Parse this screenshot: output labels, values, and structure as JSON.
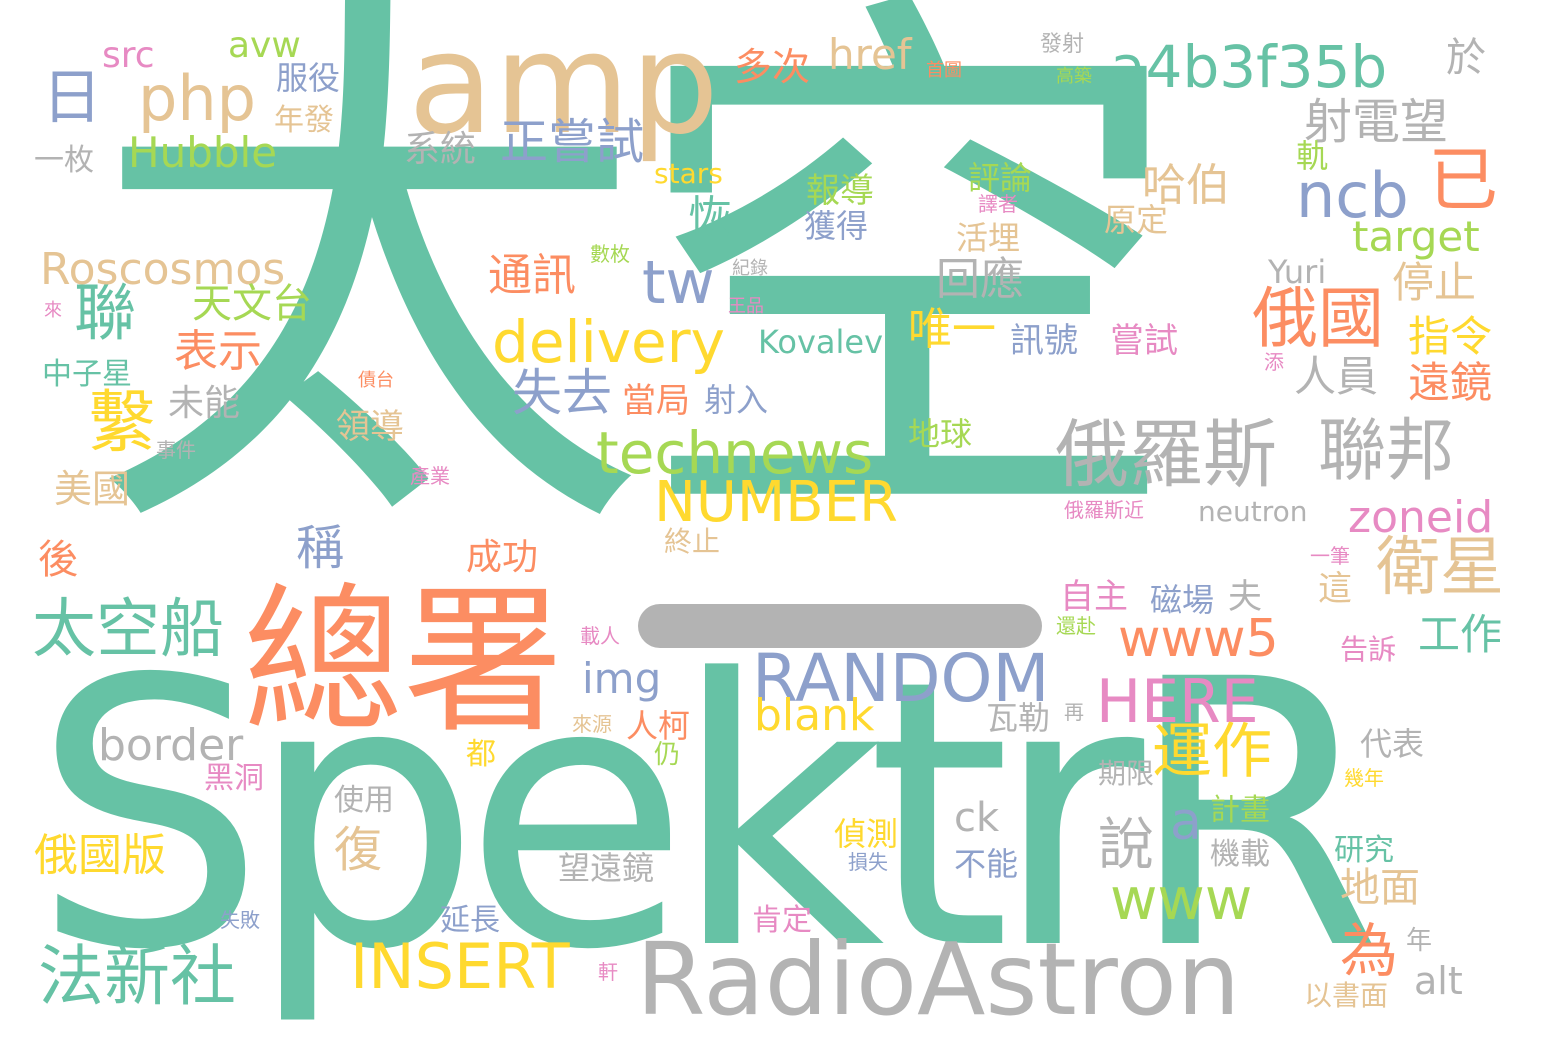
{
  "palette": {
    "c1": "#66c2a5",
    "c2": "#fc8d62",
    "c3": "#8da0cb",
    "c4": "#e78ac3",
    "c5": "#a6d854",
    "c6": "#ffd92f",
    "c7": "#e5c494",
    "c8": "#b3b3b3"
  },
  "words": [
    {
      "id": 1,
      "text": "太空"
    },
    {
      "id": 2,
      "text": "SpektrR"
    },
    {
      "id": 3,
      "text": "總署"
    },
    {
      "id": 4,
      "text": "amp"
    },
    {
      "id": 5,
      "text": "RadioAstron"
    },
    {
      "id": 6,
      "text": "俄羅斯"
    },
    {
      "id": 7,
      "text": "聯邦"
    },
    {
      "id": 8,
      "text": "a4b3f35b"
    },
    {
      "id": 9,
      "text": "technews"
    },
    {
      "id": 10,
      "text": "delivery"
    },
    {
      "id": 11,
      "text": "RANDOM"
    },
    {
      "id": 12,
      "text": "NUMBER"
    },
    {
      "id": 13,
      "text": "INSERT"
    },
    {
      "id": 14,
      "text": "HERE"
    },
    {
      "id": 15,
      "text": "www5"
    },
    {
      "id": 16,
      "text": "php"
    },
    {
      "id": 17,
      "text": "日"
    },
    {
      "id": 18,
      "text": "衛星"
    },
    {
      "id": 19,
      "text": "俄國"
    },
    {
      "id": 20,
      "text": "ncb"
    },
    {
      "id": 21,
      "text": "tw"
    },
    {
      "id": 22,
      "text": "www"
    },
    {
      "id": 23,
      "text": "已"
    },
    {
      "id": 24,
      "text": "太空船"
    },
    {
      "id": 25,
      "text": "法新社"
    },
    {
      "id": 26,
      "text": "聯"
    },
    {
      "id": 27,
      "text": "繫"
    },
    {
      "id": 28,
      "text": "運作"
    },
    {
      "id": 29,
      "text": "正嘗試"
    },
    {
      "id": 30,
      "text": "失去"
    },
    {
      "id": 31,
      "text": "href"
    },
    {
      "id": 32,
      "text": "Hubble"
    },
    {
      "id": 33,
      "text": "Roscosmos"
    },
    {
      "id": 34,
      "text": "target"
    },
    {
      "id": 35,
      "text": "zoneid"
    },
    {
      "id": 36,
      "text": "blank"
    },
    {
      "id": 37,
      "text": "img"
    },
    {
      "id": 38,
      "text": "border"
    },
    {
      "id": 39,
      "text": "俄國版"
    },
    {
      "id": 40,
      "text": "通訊"
    },
    {
      "id": 41,
      "text": "表示"
    },
    {
      "id": 42,
      "text": "天文台"
    },
    {
      "id": 43,
      "text": "為"
    },
    {
      "id": 44,
      "text": "說"
    },
    {
      "id": 45,
      "text": "a"
    },
    {
      "id": 46,
      "text": "回應"
    },
    {
      "id": 47,
      "text": "唯一"
    },
    {
      "id": 48,
      "text": "射電望"
    },
    {
      "id": 49,
      "text": "停止"
    },
    {
      "id": 50,
      "text": "指令"
    },
    {
      "id": 51,
      "text": "遠鏡"
    },
    {
      "id": 52,
      "text": "人員"
    },
    {
      "id": 53,
      "text": "哈伯"
    },
    {
      "id": 54,
      "text": "恢"
    },
    {
      "id": 55,
      "text": "復"
    },
    {
      "id": 56,
      "text": "稱"
    },
    {
      "id": 57,
      "text": "工作"
    },
    {
      "id": 58,
      "text": "地面"
    },
    {
      "id": 59,
      "text": "Kovalev"
    },
    {
      "id": 60,
      "text": "Yuri"
    },
    {
      "id": 61,
      "text": "src"
    },
    {
      "id": 62,
      "text": "avw"
    },
    {
      "id": 63,
      "text": "服役"
    },
    {
      "id": 64,
      "text": "多次"
    },
    {
      "id": 65,
      "text": "系統"
    },
    {
      "id": 66,
      "text": "於"
    },
    {
      "id": 67,
      "text": "美國"
    },
    {
      "id": 68,
      "text": "未能"
    },
    {
      "id": 69,
      "text": "領導"
    },
    {
      "id": 70,
      "text": "後"
    },
    {
      "id": 71,
      "text": "成功"
    },
    {
      "id": 72,
      "text": "當局"
    },
    {
      "id": 73,
      "text": "射入"
    },
    {
      "id": 74,
      "text": "訊號"
    },
    {
      "id": 75,
      "text": "嘗試"
    },
    {
      "id": 76,
      "text": "報導"
    },
    {
      "id": 77,
      "text": "獲得"
    },
    {
      "id": 78,
      "text": "評論"
    },
    {
      "id": 79,
      "text": "活埋"
    },
    {
      "id": 80,
      "text": "原定"
    },
    {
      "id": 81,
      "text": "中子星"
    },
    {
      "id": 82,
      "text": "一枚"
    },
    {
      "id": 83,
      "text": "年發"
    },
    {
      "id": 84,
      "text": "stars"
    },
    {
      "id": 85,
      "text": "軌"
    },
    {
      "id": 86,
      "text": "地球"
    },
    {
      "id": 87,
      "text": "neutron"
    },
    {
      "id": 88,
      "text": "alt"
    },
    {
      "id": 89,
      "text": "ck"
    },
    {
      "id": 90,
      "text": "瓦勒"
    },
    {
      "id": 91,
      "text": "代表"
    },
    {
      "id": 92,
      "text": "磁場"
    },
    {
      "id": 93,
      "text": "自主"
    },
    {
      "id": 94,
      "text": "夫"
    },
    {
      "id": 95,
      "text": "這"
    },
    {
      "id": 96,
      "text": "告訴"
    },
    {
      "id": 97,
      "text": "計畫"
    },
    {
      "id": 98,
      "text": "期限"
    },
    {
      "id": 99,
      "text": "機載"
    },
    {
      "id": 100,
      "text": "研究"
    },
    {
      "id": 101,
      "text": "偵測"
    },
    {
      "id": 102,
      "text": "不能"
    },
    {
      "id": 103,
      "text": "望遠鏡"
    },
    {
      "id": 104,
      "text": "使用"
    },
    {
      "id": 105,
      "text": "延長"
    },
    {
      "id": 106,
      "text": "肯定"
    },
    {
      "id": 107,
      "text": "以書面"
    },
    {
      "id": 108,
      "text": "年"
    },
    {
      "id": 109,
      "text": "人柯"
    },
    {
      "id": 110,
      "text": "都"
    },
    {
      "id": 111,
      "text": "黑洞"
    },
    {
      "id": 112,
      "text": "仍"
    },
    {
      "id": 113,
      "text": "終止"
    },
    {
      "id": 114,
      "text": "發射"
    },
    {
      "id": 115,
      "text": "首圖"
    },
    {
      "id": 116,
      "text": "高築"
    },
    {
      "id": 117,
      "text": "譯者"
    },
    {
      "id": 118,
      "text": "數枚"
    },
    {
      "id": 119,
      "text": "紀錄"
    },
    {
      "id": 120,
      "text": "王品"
    },
    {
      "id": 121,
      "text": "來"
    },
    {
      "id": 122,
      "text": "債台"
    },
    {
      "id": 123,
      "text": "事件"
    },
    {
      "id": 124,
      "text": "產業"
    },
    {
      "id": 125,
      "text": "俄羅斯近"
    },
    {
      "id": 126,
      "text": "添"
    },
    {
      "id": 127,
      "text": "一筆"
    },
    {
      "id": 128,
      "text": "還赴"
    },
    {
      "id": 129,
      "text": "載人"
    },
    {
      "id": 130,
      "text": "來源"
    },
    {
      "id": 131,
      "text": "再"
    },
    {
      "id": 132,
      "text": "幾年"
    },
    {
      "id": 133,
      "text": "損失"
    },
    {
      "id": 134,
      "text": "失敗"
    },
    {
      "id": 135,
      "text": "軒"
    }
  ]
}
